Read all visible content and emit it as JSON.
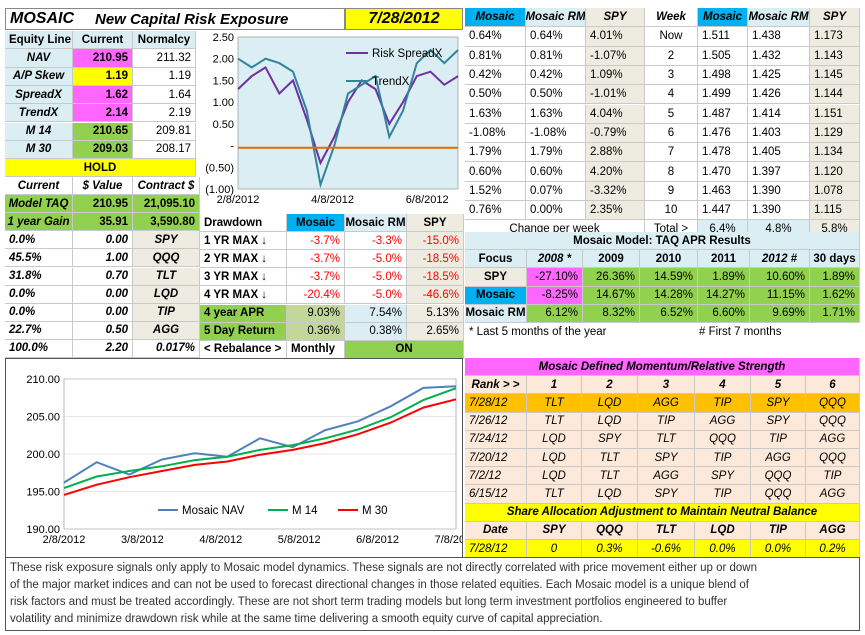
{
  "header": {
    "mosaic": "MOSAIC",
    "title": "New Capital Risk Exposure",
    "date": "7/28/2012"
  },
  "equity": {
    "headers": [
      "Equity Line",
      "Current",
      "Normalcy"
    ],
    "rows": [
      {
        "label": "NAV",
        "current": "210.95",
        "normal": "211.32"
      },
      {
        "label": "A/P Skew",
        "current": "1.19",
        "normal": "1.19"
      },
      {
        "label": "SpreadX",
        "current": "1.62",
        "normal": "1.64"
      },
      {
        "label": "TrendX",
        "current": "2.14",
        "normal": "2.19"
      },
      {
        "label": "M 14",
        "current": "210.65",
        "normal": "209.81"
      },
      {
        "label": "M 30",
        "current": "209.03",
        "normal": "208.17"
      }
    ],
    "hold": "HOLD"
  },
  "alloc": {
    "headers": [
      "Current",
      "$ Value",
      "Contract $"
    ],
    "model_taq": {
      "label": "Model TAQ",
      "value": "210.95",
      "contract": "21,095.10"
    },
    "gain": {
      "label": "1 year Gain",
      "value": "35.91",
      "contract": "3,590.80"
    },
    "rows": [
      {
        "pct": "0.0%",
        "val": "0.00",
        "name": "SPY"
      },
      {
        "pct": "45.5%",
        "val": "1.00",
        "name": "QQQ"
      },
      {
        "pct": "31.8%",
        "val": "0.70",
        "name": "TLT"
      },
      {
        "pct": "0.0%",
        "val": "0.00",
        "name": "LQD"
      },
      {
        "pct": "0.0%",
        "val": "0.00",
        "name": "TIP"
      },
      {
        "pct": "22.7%",
        "val": "0.50",
        "name": "AGG"
      }
    ],
    "total": {
      "pct": "100.0%",
      "val": "2.20",
      "extra": "0.017%"
    }
  },
  "drawdown": {
    "headers": [
      "Drawdown",
      "Mosaic",
      "Mosaic RM",
      "SPY"
    ],
    "rows": [
      {
        "label": "1 YR MAX ↓",
        "m": "-3.7%",
        "rm": "-3.3%",
        "spy": "-15.0%"
      },
      {
        "label": "2 YR MAX ↓",
        "m": "-3.7%",
        "rm": "-5.0%",
        "spy": "-18.5%"
      },
      {
        "label": "3 YR MAX ↓",
        "m": "-3.7%",
        "rm": "-5.0%",
        "spy": "-18.5%"
      },
      {
        "label": "4 YR MAX ↓",
        "m": "-20.4%",
        "rm": "-5.0%",
        "spy": "-46.6%"
      },
      {
        "label": "4 year APR",
        "m": "9.03%",
        "rm": "7.54%",
        "spy": "5.13%"
      },
      {
        "label": "5 Day Return",
        "m": "0.36%",
        "rm": "0.38%",
        "spy": "2.65%"
      }
    ],
    "rebalance": {
      "label": "< Rebalance >",
      "freq": "Monthly",
      "status": "ON"
    }
  },
  "weekly": {
    "headers": [
      "Mosaic",
      "Mosaic RM",
      "SPY"
    ],
    "rows": [
      [
        "0.64%",
        "0.64%",
        "4.01%"
      ],
      [
        "0.81%",
        "0.81%",
        "-1.07%"
      ],
      [
        "0.42%",
        "0.42%",
        "1.09%"
      ],
      [
        "0.50%",
        "0.50%",
        "-1.01%"
      ],
      [
        "1.63%",
        "1.63%",
        "4.04%"
      ],
      [
        "-1.08%",
        "-1.08%",
        "-0.79%"
      ],
      [
        "1.79%",
        "1.79%",
        "2.88%"
      ],
      [
        "0.60%",
        "0.60%",
        "4.20%"
      ],
      [
        "1.52%",
        "0.07%",
        "-3.32%"
      ],
      [
        "0.76%",
        "0.00%",
        "2.35%"
      ]
    ],
    "change_label": "Change per week"
  },
  "week_table": {
    "headers": [
      "Week",
      "Mosaic",
      "Mosaic RM",
      "SPY"
    ],
    "rows": [
      [
        "Now",
        "1.511",
        "1.438",
        "1.173"
      ],
      [
        "2",
        "1.505",
        "1.432",
        "1.143"
      ],
      [
        "3",
        "1.498",
        "1.425",
        "1.145"
      ],
      [
        "4",
        "1.499",
        "1.426",
        "1.144"
      ],
      [
        "5",
        "1.487",
        "1.414",
        "1.151"
      ],
      [
        "6",
        "1.476",
        "1.403",
        "1.129"
      ],
      [
        "7",
        "1.478",
        "1.405",
        "1.134"
      ],
      [
        "8",
        "1.470",
        "1.397",
        "1.120"
      ],
      [
        "9",
        "1.463",
        "1.390",
        "1.078"
      ],
      [
        "10",
        "1.447",
        "1.390",
        "1.115"
      ]
    ],
    "total": {
      "label": "Total >",
      "m": "6.4%",
      "rm": "4.8%",
      "spy": "5.8%"
    }
  },
  "apr": {
    "title": "Mosaic Model:  TAQ        APR Results",
    "headers": [
      "Focus",
      "2008 *",
      "2009",
      "2010",
      "2011",
      "2012 #",
      "30 days"
    ],
    "rows": [
      {
        "label": "SPY",
        "v": [
          "-27.10%",
          "26.36%",
          "14.59%",
          "1.89%",
          "10.60%",
          "1.89%"
        ]
      },
      {
        "label": "Mosaic",
        "v": [
          "-8.25%",
          "14.67%",
          "14.28%",
          "14.27%",
          "11.15%",
          "1.62%"
        ]
      },
      {
        "label": "Mosaic RM",
        "v": [
          "6.12%",
          "8.32%",
          "6.52%",
          "6.60%",
          "9.69%",
          "1.71%"
        ]
      }
    ],
    "note1": "*  Last 5 months of the year",
    "note2": "#  First 7 months"
  },
  "momentum": {
    "title": "Mosaic Defined Momentum/Relative Strength",
    "headers": [
      "Rank > >",
      "1",
      "2",
      "3",
      "4",
      "5",
      "6"
    ],
    "rows": [
      [
        "7/28/12",
        "TLT",
        "LQD",
        "AGG",
        "TIP",
        "SPY",
        "QQQ"
      ],
      [
        "7/26/12",
        "TLT",
        "LQD",
        "TIP",
        "AGG",
        "SPY",
        "QQQ"
      ],
      [
        "7/24/12",
        "LQD",
        "SPY",
        "TLT",
        "QQQ",
        "TIP",
        "AGG"
      ],
      [
        "7/20/12",
        "LQD",
        "TLT",
        "SPY",
        "TIP",
        "AGG",
        "QQQ"
      ],
      [
        "7/2/12",
        "LQD",
        "TLT",
        "AGG",
        "SPY",
        "QQQ",
        "TIP"
      ],
      [
        "6/15/12",
        "TLT",
        "LQD",
        "SPY",
        "TIP",
        "QQQ",
        "AGG"
      ]
    ]
  },
  "share": {
    "title": "Share Allocation Adjustment to Maintain Neutral Balance",
    "headers": [
      "Date",
      "SPY",
      "QQQ",
      "TLT",
      "LQD",
      "TIP",
      "AGG"
    ],
    "row": [
      "7/28/12",
      "0",
      "0.3%",
      "-0.6%",
      "0.0%",
      "0.0%",
      "0.2%"
    ]
  },
  "footer": {
    "lines": [
      "These risk exposure signals only apply to Mosaic model dynamics.  These signals are not directly correlated with price movement either up or down",
      "of the  major market indices and can not be used to forecast directional changes in those related equities.  Each Mosaic model is a unique blend of",
      "risk factors and must be treated accordingly. These are not short term trading models but long term investment portfolios engineered to buffer",
      "volatility and minimize drawdown risk while at the same time delivering a smooth equity curve of capital appreciation."
    ]
  },
  "chart_data": [
    {
      "type": "line",
      "title": "",
      "ylim": [
        -1.0,
        2.5
      ],
      "yticks": [
        "2.50",
        "2.00",
        "1.50",
        "1.00",
        "0.50",
        "-",
        "(0.50)",
        "(1.00)"
      ],
      "xticks": [
        "2/8/2012",
        "4/8/2012",
        "6/8/2012"
      ],
      "x": [
        "2/8/2012",
        "2/20/2012",
        "3/1/2012",
        "3/12/2012",
        "3/22/2012",
        "4/2/2012",
        "4/12/2012",
        "4/23/2012",
        "5/3/2012",
        "5/14/2012",
        "5/24/2012",
        "6/4/2012",
        "6/14/2012",
        "6/25/2012",
        "7/5/2012",
        "7/16/2012",
        "7/26/2012"
      ],
      "legend_position": "top-right",
      "series": [
        {
          "name": "Risk SpreadX",
          "color": "#7030a0",
          "values": [
            1.3,
            1.6,
            1.8,
            1.2,
            1.5,
            0.6,
            -0.4,
            0.2,
            1.0,
            1.5,
            1.3,
            0.5,
            1.0,
            1.6,
            1.7,
            1.4,
            1.6
          ]
        },
        {
          "name": "TrendX",
          "color": "#31849b",
          "values": [
            2.0,
            1.8,
            2.0,
            1.9,
            1.7,
            0.8,
            -0.9,
            0.0,
            1.2,
            1.4,
            1.6,
            0.2,
            0.8,
            1.9,
            2.2,
            1.9,
            2.2
          ]
        },
        {
          "name": "",
          "color": "#e36c09",
          "values": [
            -0.05,
            -0.05,
            -0.05,
            -0.05,
            -0.05,
            -0.05,
            -0.05,
            -0.05,
            -0.05,
            -0.05,
            -0.05,
            -0.05,
            -0.05,
            -0.05,
            -0.05,
            -0.05,
            -0.05
          ]
        }
      ]
    },
    {
      "type": "line",
      "title": "",
      "ylim": [
        190,
        212
      ],
      "yticks": [
        "210.00",
        "205.00",
        "200.00",
        "195.00",
        "190.00"
      ],
      "xticks": [
        "2/8/2012",
        "3/8/2012",
        "4/8/2012",
        "5/8/2012",
        "6/8/2012",
        "7/8/2012"
      ],
      "x": [
        "2/8/2012",
        "2/22/2012",
        "3/8/2012",
        "3/22/2012",
        "4/8/2012",
        "4/22/2012",
        "5/8/2012",
        "5/22/2012",
        "6/8/2012",
        "6/22/2012",
        "7/8/2012",
        "7/22/2012",
        "7/28/2012"
      ],
      "legend_position": "bottom",
      "series": [
        {
          "name": "Mosaic NAV",
          "color": "#4f81bd",
          "values": [
            196.8,
            199.8,
            198.0,
            200.2,
            201.1,
            200.6,
            203.3,
            202.0,
            204.5,
            205.8,
            208.0,
            210.7,
            210.95
          ]
        },
        {
          "name": "M 14",
          "color": "#00b050",
          "values": [
            196.0,
            197.7,
            198.5,
            199.2,
            200.1,
            200.6,
            201.6,
            202.3,
            203.3,
            204.6,
            206.4,
            208.9,
            210.65
          ]
        },
        {
          "name": "M 30",
          "color": "#ff0000",
          "values": [
            195.0,
            196.5,
            197.6,
            198.5,
            199.4,
            199.9,
            200.9,
            201.6,
            202.6,
            203.9,
            205.6,
            207.8,
            209.03
          ]
        }
      ]
    }
  ]
}
